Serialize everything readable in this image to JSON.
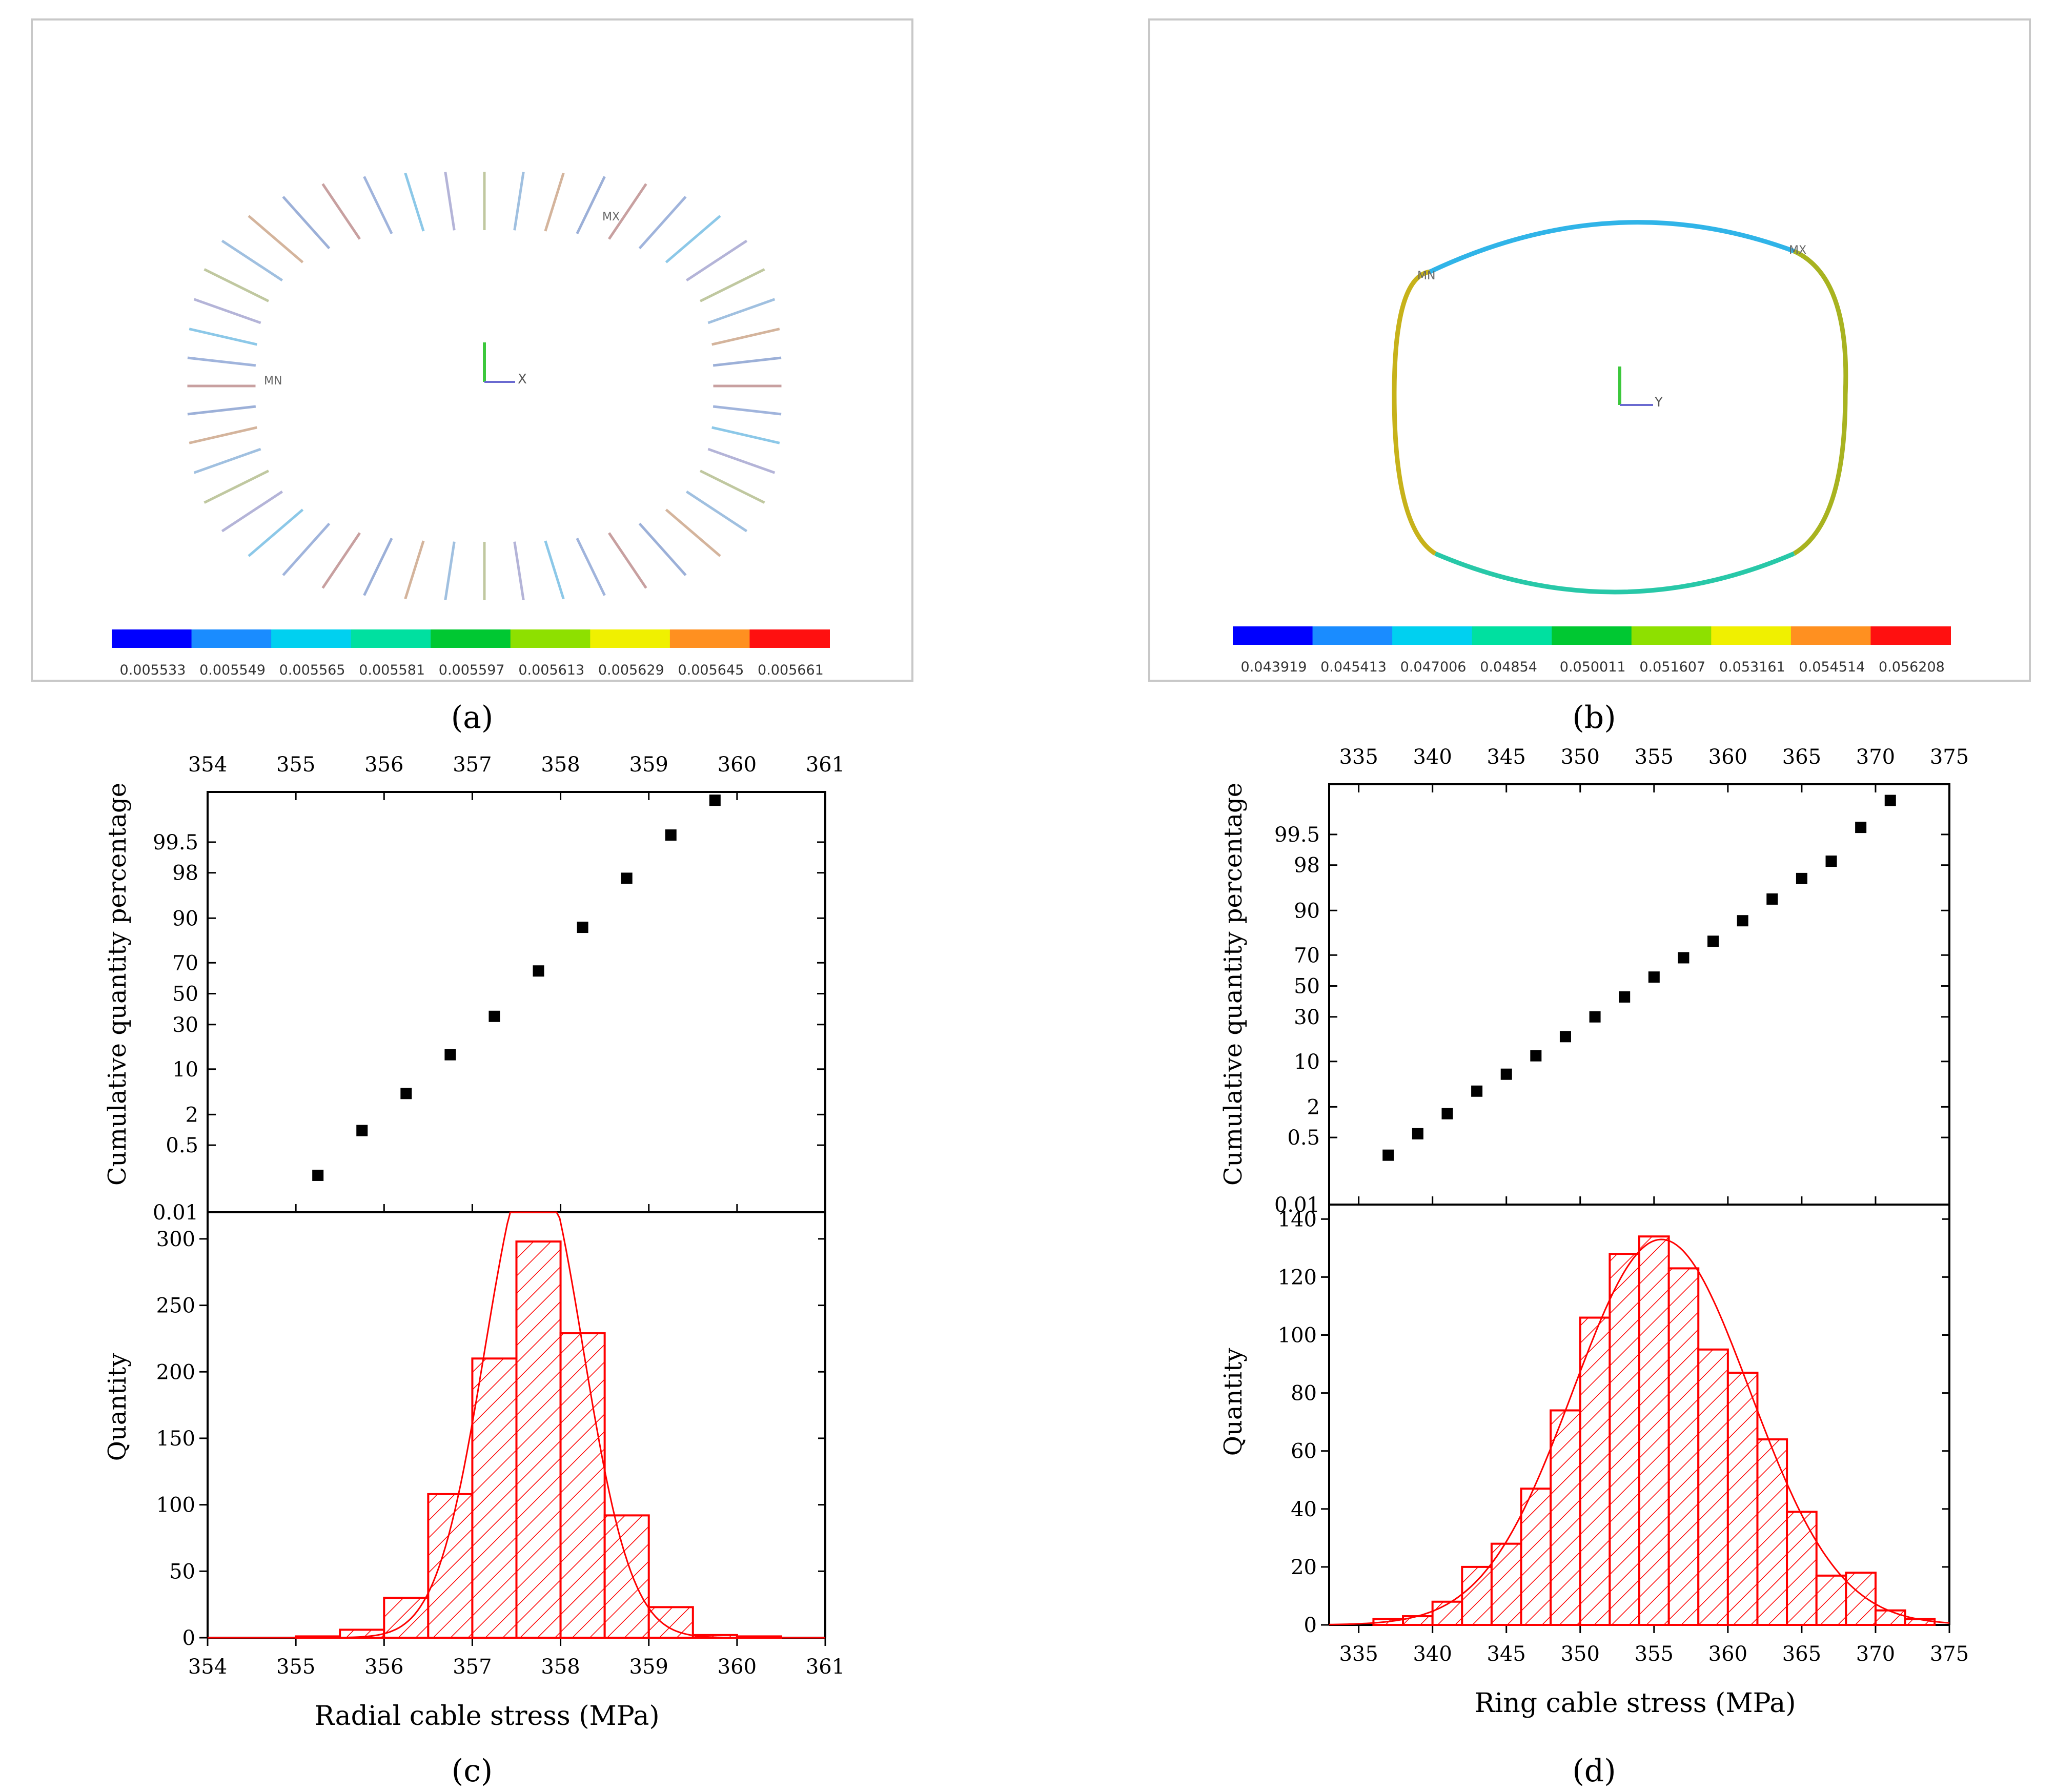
{
  "panels": {
    "a": {
      "caption": "(a)"
    },
    "b": {
      "caption": "(b)"
    },
    "c": {
      "caption": "(c)"
    },
    "d": {
      "caption": "(d)"
    }
  },
  "fem": {
    "a": {
      "legend_values": [
        "0.005533",
        "0.005549",
        "0.005565",
        "0.005581",
        "0.005597",
        "0.005613",
        "0.005629",
        "0.005645",
        "0.005661"
      ],
      "legend_colors": [
        "#0000ff",
        "#1a8cff",
        "#00d0f0",
        "#00e0a0",
        "#00c832",
        "#8ee000",
        "#f0f000",
        "#ff9020",
        "#ff1010"
      ],
      "axis_label": "X"
    },
    "b": {
      "legend_values": [
        "0.043919",
        "0.045413",
        "0.047006",
        "0.04854",
        "0.050011",
        "0.051607",
        "0.053161",
        "0.054514",
        "0.056208"
      ],
      "legend_colors": [
        "#0000ff",
        "#1a8cff",
        "#00d0f0",
        "#00e0a0",
        "#00c832",
        "#8ee000",
        "#f0f000",
        "#ff9020",
        "#ff1010"
      ],
      "axis_label": "Y"
    }
  },
  "chart_data": [
    {
      "panel": "c",
      "type": "scatter",
      "title": "",
      "ylabel": "Cumulative quantity percentage",
      "xlim": [
        354,
        361
      ],
      "xticks": [
        "354",
        "355",
        "356",
        "357",
        "358",
        "359",
        "360",
        "361"
      ],
      "yticks": [
        "0.01",
        "0.5",
        "2",
        "10",
        "30",
        "50",
        "70",
        "90",
        "98",
        "99.5"
      ],
      "x": [
        355.25,
        355.75,
        356.25,
        356.75,
        357.25,
        357.75,
        358.25,
        358.75,
        359.25,
        359.75
      ],
      "y": [
        0.1,
        1.0,
        4.5,
        15.0,
        35.0,
        65.0,
        87.0,
        97.5,
        99.65,
        99.95
      ],
      "marker_color": "#000000"
    },
    {
      "panel": "c",
      "type": "bar",
      "title": "",
      "xlabel": "Radial cable stress (MPa)",
      "ylabel": "Quantity",
      "xlim": [
        354,
        361
      ],
      "ylim": [
        0,
        320
      ],
      "xticks": [
        "354",
        "355",
        "356",
        "357",
        "358",
        "359",
        "360",
        "361"
      ],
      "yticks": [
        "0",
        "50",
        "100",
        "150",
        "200",
        "250",
        "300"
      ],
      "bin_edges": [
        355.0,
        355.5,
        356.0,
        356.5,
        357.0,
        357.5,
        358.0,
        358.5,
        359.0,
        359.5,
        360.0,
        360.5
      ],
      "values": [
        1,
        6,
        30,
        108,
        210,
        298,
        229,
        92,
        23,
        2,
        1
      ],
      "fit_curve": "normal",
      "fit_mean": 357.7,
      "fit_sd": 0.55,
      "color": "#ff0000"
    },
    {
      "panel": "d",
      "type": "scatter",
      "title": "",
      "ylabel": "Cumulative quantity percentage",
      "xlim": [
        333,
        375
      ],
      "xticks": [
        "335",
        "340",
        "345",
        "350",
        "355",
        "360",
        "365",
        "370",
        "375"
      ],
      "yticks": [
        "0.01",
        "0.5",
        "2",
        "10",
        "30",
        "50",
        "70",
        "90",
        "98",
        "99.5"
      ],
      "x": [
        337,
        339,
        341,
        343,
        345,
        347,
        349,
        351,
        353,
        355,
        357,
        359,
        361,
        363,
        365,
        367,
        369,
        371
      ],
      "y": [
        0.2,
        0.6,
        1.5,
        3.7,
        6.7,
        11.8,
        19.5,
        30.0,
        42.6,
        56.0,
        68.4,
        77.6,
        86.6,
        93.0,
        96.6,
        98.3,
        99.65,
        99.92
      ],
      "marker_color": "#000000"
    },
    {
      "panel": "d",
      "type": "bar",
      "title": "",
      "xlabel": "Ring cable stress (MPa)",
      "ylabel": "Quantity",
      "xlim": [
        333,
        375
      ],
      "ylim": [
        0,
        145
      ],
      "xticks": [
        "335",
        "340",
        "345",
        "350",
        "355",
        "360",
        "365",
        "370",
        "375"
      ],
      "yticks": [
        "0",
        "20",
        "40",
        "60",
        "80",
        "100",
        "120",
        "140"
      ],
      "bin_edges": [
        336,
        338,
        340,
        342,
        344,
        346,
        348,
        350,
        352,
        354,
        356,
        358,
        360,
        362,
        364,
        366,
        368,
        370,
        372,
        374
      ],
      "values": [
        2,
        3,
        8,
        20,
        28,
        47,
        74,
        106,
        128,
        134,
        123,
        95,
        87,
        64,
        39,
        17,
        18,
        5,
        2
      ],
      "fit_curve": "normal",
      "fit_mean": 355.5,
      "fit_sd": 6.0,
      "color": "#ff0000"
    }
  ]
}
